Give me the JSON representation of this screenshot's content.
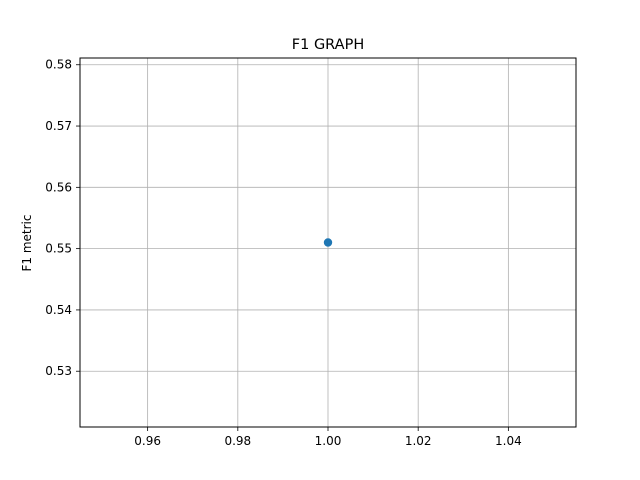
{
  "chart_data": {
    "type": "scatter",
    "title": "F1 GRAPH",
    "xlabel": "",
    "ylabel": "F1 metric",
    "xlim": [
      0.945,
      1.055
    ],
    "ylim": [
      0.5209,
      0.5811
    ],
    "x_ticks": [
      0.96,
      0.98,
      1.0,
      1.02,
      1.04
    ],
    "x_tick_labels": [
      "0.96",
      "0.98",
      "1.00",
      "1.02",
      "1.04"
    ],
    "y_ticks": [
      0.53,
      0.54,
      0.55,
      0.56,
      0.57,
      0.58
    ],
    "y_tick_labels": [
      "0.53",
      "0.54",
      "0.55",
      "0.56",
      "0.57",
      "0.58"
    ],
    "grid": true,
    "points": [
      {
        "x": 1.0,
        "y": 0.551
      }
    ],
    "marker_color": "#1f77b4",
    "grid_color": "#b0b0b0",
    "axis_color": "#000000"
  }
}
